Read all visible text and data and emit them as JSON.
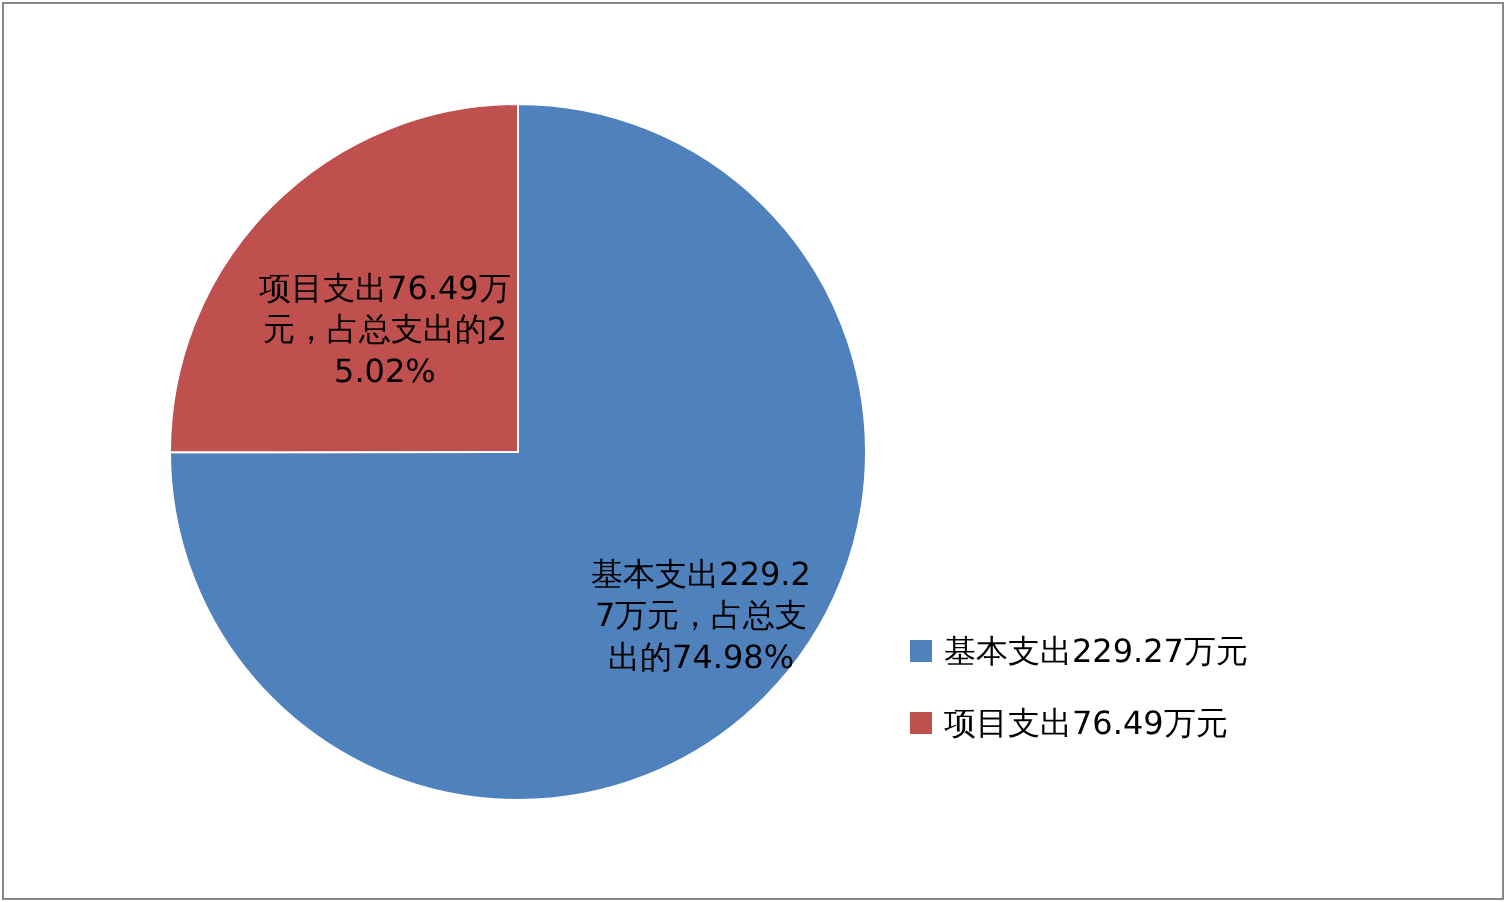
{
  "chart_data": {
    "type": "pie",
    "categories": [
      "基本支出229.27万元",
      "项目支出76.49万元"
    ],
    "values": [
      229.27,
      76.49
    ],
    "colors": [
      "#4f81bd",
      "#c0504d"
    ],
    "value_labels": [
      "基本支出229.27万元，占总支出的74.98%",
      "项目支出76.49万元，占总支出的25.02%"
    ],
    "legend": "right"
  }
}
